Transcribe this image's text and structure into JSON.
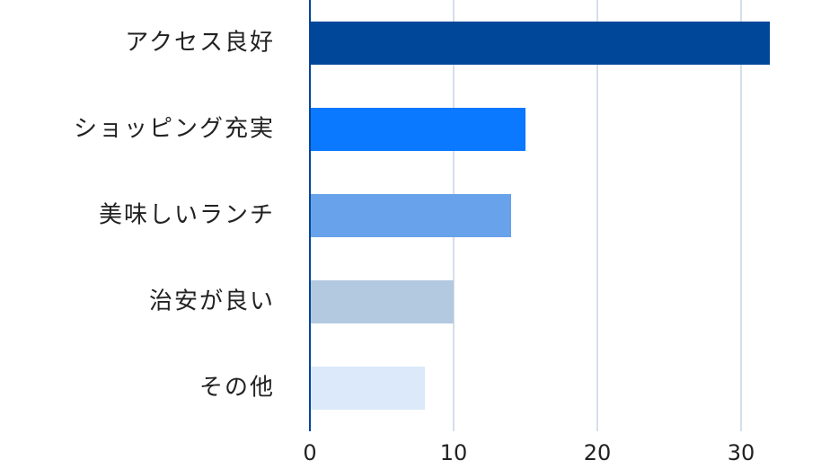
{
  "chart_data": {
    "type": "bar",
    "orientation": "horizontal",
    "categories": [
      "アクセス良好",
      "ショッピング充実",
      "美味しいランチ",
      "治安が良い",
      "その他"
    ],
    "values": [
      32,
      15,
      14,
      10,
      8
    ],
    "colors": [
      "#00479a",
      "#0a78ff",
      "#68a2ea",
      "#b3c9e0",
      "#dbe9fb"
    ],
    "xlim": [
      0,
      32
    ],
    "xticks": [
      0,
      10,
      20,
      30
    ],
    "grid": true
  }
}
